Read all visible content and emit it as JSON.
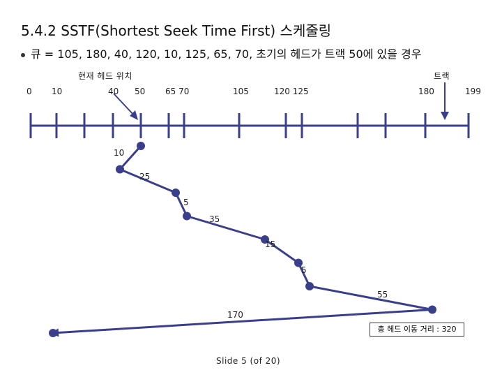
{
  "title": "5.4.2 SSTF(Shortest Seek Time First) 스케줄링",
  "queue_text": "큐 = 105, 180, 40, 120, 10, 125, 65, 70, 초기의 헤드가 트랙 50에 있을 경우",
  "head_label": "현재 헤드 위치",
  "track_label": "트랙",
  "track_numbers": [
    "0",
    "10",
    "40",
    "50",
    "65 70",
    "105",
    "120 125",
    "180",
    "199"
  ],
  "distances": [
    "10",
    "25",
    "5",
    "35",
    "15",
    "5",
    "55",
    "170"
  ],
  "total_label": "총 헤드 이동 거리 : 320",
  "footer": "Slide  5 (of  20)",
  "chart_data": {
    "type": "line",
    "track_range": [
      0,
      199
    ],
    "head_start": 50,
    "service_order": [
      50,
      40,
      65,
      70,
      105,
      120,
      125,
      180,
      10
    ],
    "distances": [
      10,
      25,
      5,
      35,
      15,
      5,
      55,
      170
    ],
    "total": 320
  },
  "colors": {
    "line": "#3a3f8c",
    "point": "#3a3f8c",
    "axis": "#3a3f8c"
  }
}
